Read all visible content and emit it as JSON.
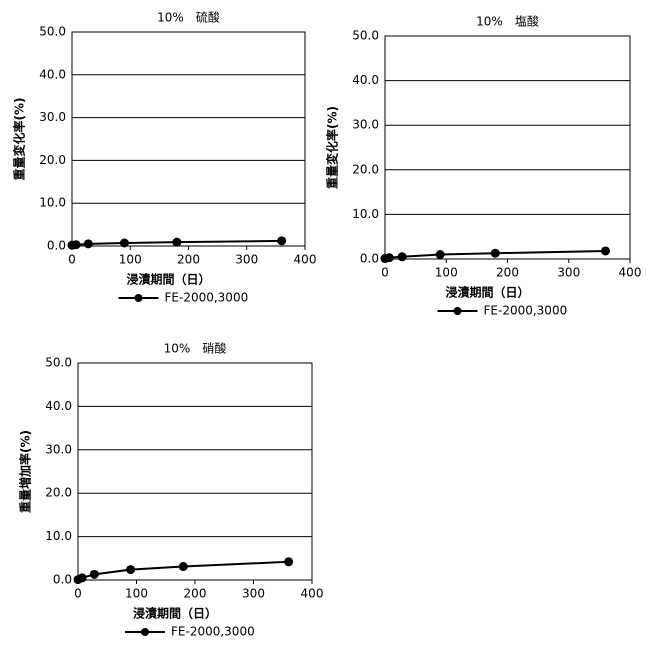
{
  "chart_data": [
    {
      "type": "line",
      "title": "10%　硫酸",
      "ylabel": "重量変化率(%)",
      "xlabel": "浸漬期間（日）",
      "x": [
        0,
        7,
        28,
        90,
        180,
        360
      ],
      "series": [
        {
          "name": "FE-2000,3000",
          "color": "#000000",
          "values": [
            0.2,
            0.3,
            0.5,
            0.7,
            0.9,
            1.2
          ]
        }
      ],
      "xlim": [
        0,
        400
      ],
      "xticks": [
        0,
        100,
        200,
        300,
        400
      ],
      "ylim": [
        0,
        50
      ],
      "yticks": [
        {
          "value": 0,
          "label": "0.0"
        },
        {
          "value": 10,
          "label": "10.0"
        },
        {
          "value": 20,
          "label": "20.0"
        },
        {
          "value": 30,
          "label": "30.0"
        },
        {
          "value": 40,
          "label": "40.0"
        },
        {
          "value": 50,
          "label": "50.0"
        }
      ],
      "grid": true
    },
    {
      "type": "line",
      "title": "10%　塩酸",
      "ylabel": "重量変化率(%)",
      "xlabel": "浸漬期間（日）",
      "x": [
        0,
        7,
        28,
        90,
        180,
        360
      ],
      "series": [
        {
          "name": "FE-2000,3000",
          "color": "#000000",
          "values": [
            0.1,
            0.3,
            0.5,
            1.0,
            1.3,
            1.8
          ]
        }
      ],
      "xlim": [
        0,
        400
      ],
      "xticks": [
        0,
        100,
        200,
        300,
        400
      ],
      "ylim": [
        0,
        50
      ],
      "yticks": [
        {
          "value": 0,
          "label": "0.0"
        },
        {
          "value": 10,
          "label": "10.0"
        },
        {
          "value": 20,
          "label": "20.0"
        },
        {
          "value": 30,
          "label": "30.0"
        },
        {
          "value": 40,
          "label": "40.0"
        },
        {
          "value": 50,
          "label": "50.0"
        }
      ],
      "grid": true
    },
    {
      "type": "line",
      "title": "10%　硝酸",
      "ylabel": "重量増加率(%)",
      "xlabel": "浸漬期間（日）",
      "x": [
        0,
        7,
        28,
        90,
        180,
        360
      ],
      "series": [
        {
          "name": "FE-2000,3000",
          "color": "#000000",
          "values": [
            0.1,
            0.5,
            1.3,
            2.4,
            3.1,
            4.2
          ]
        }
      ],
      "xlim": [
        0,
        400
      ],
      "xticks": [
        0,
        100,
        200,
        300,
        400
      ],
      "ylim": [
        0,
        50
      ],
      "yticks": [
        {
          "value": 0,
          "label": "0.0"
        },
        {
          "value": 10,
          "label": "10.0"
        },
        {
          "value": 20,
          "label": "20.0"
        },
        {
          "value": 30,
          "label": "30.0"
        },
        {
          "value": 40,
          "label": "40.0"
        },
        {
          "value": 50,
          "label": "50.0"
        }
      ],
      "grid": true
    }
  ]
}
